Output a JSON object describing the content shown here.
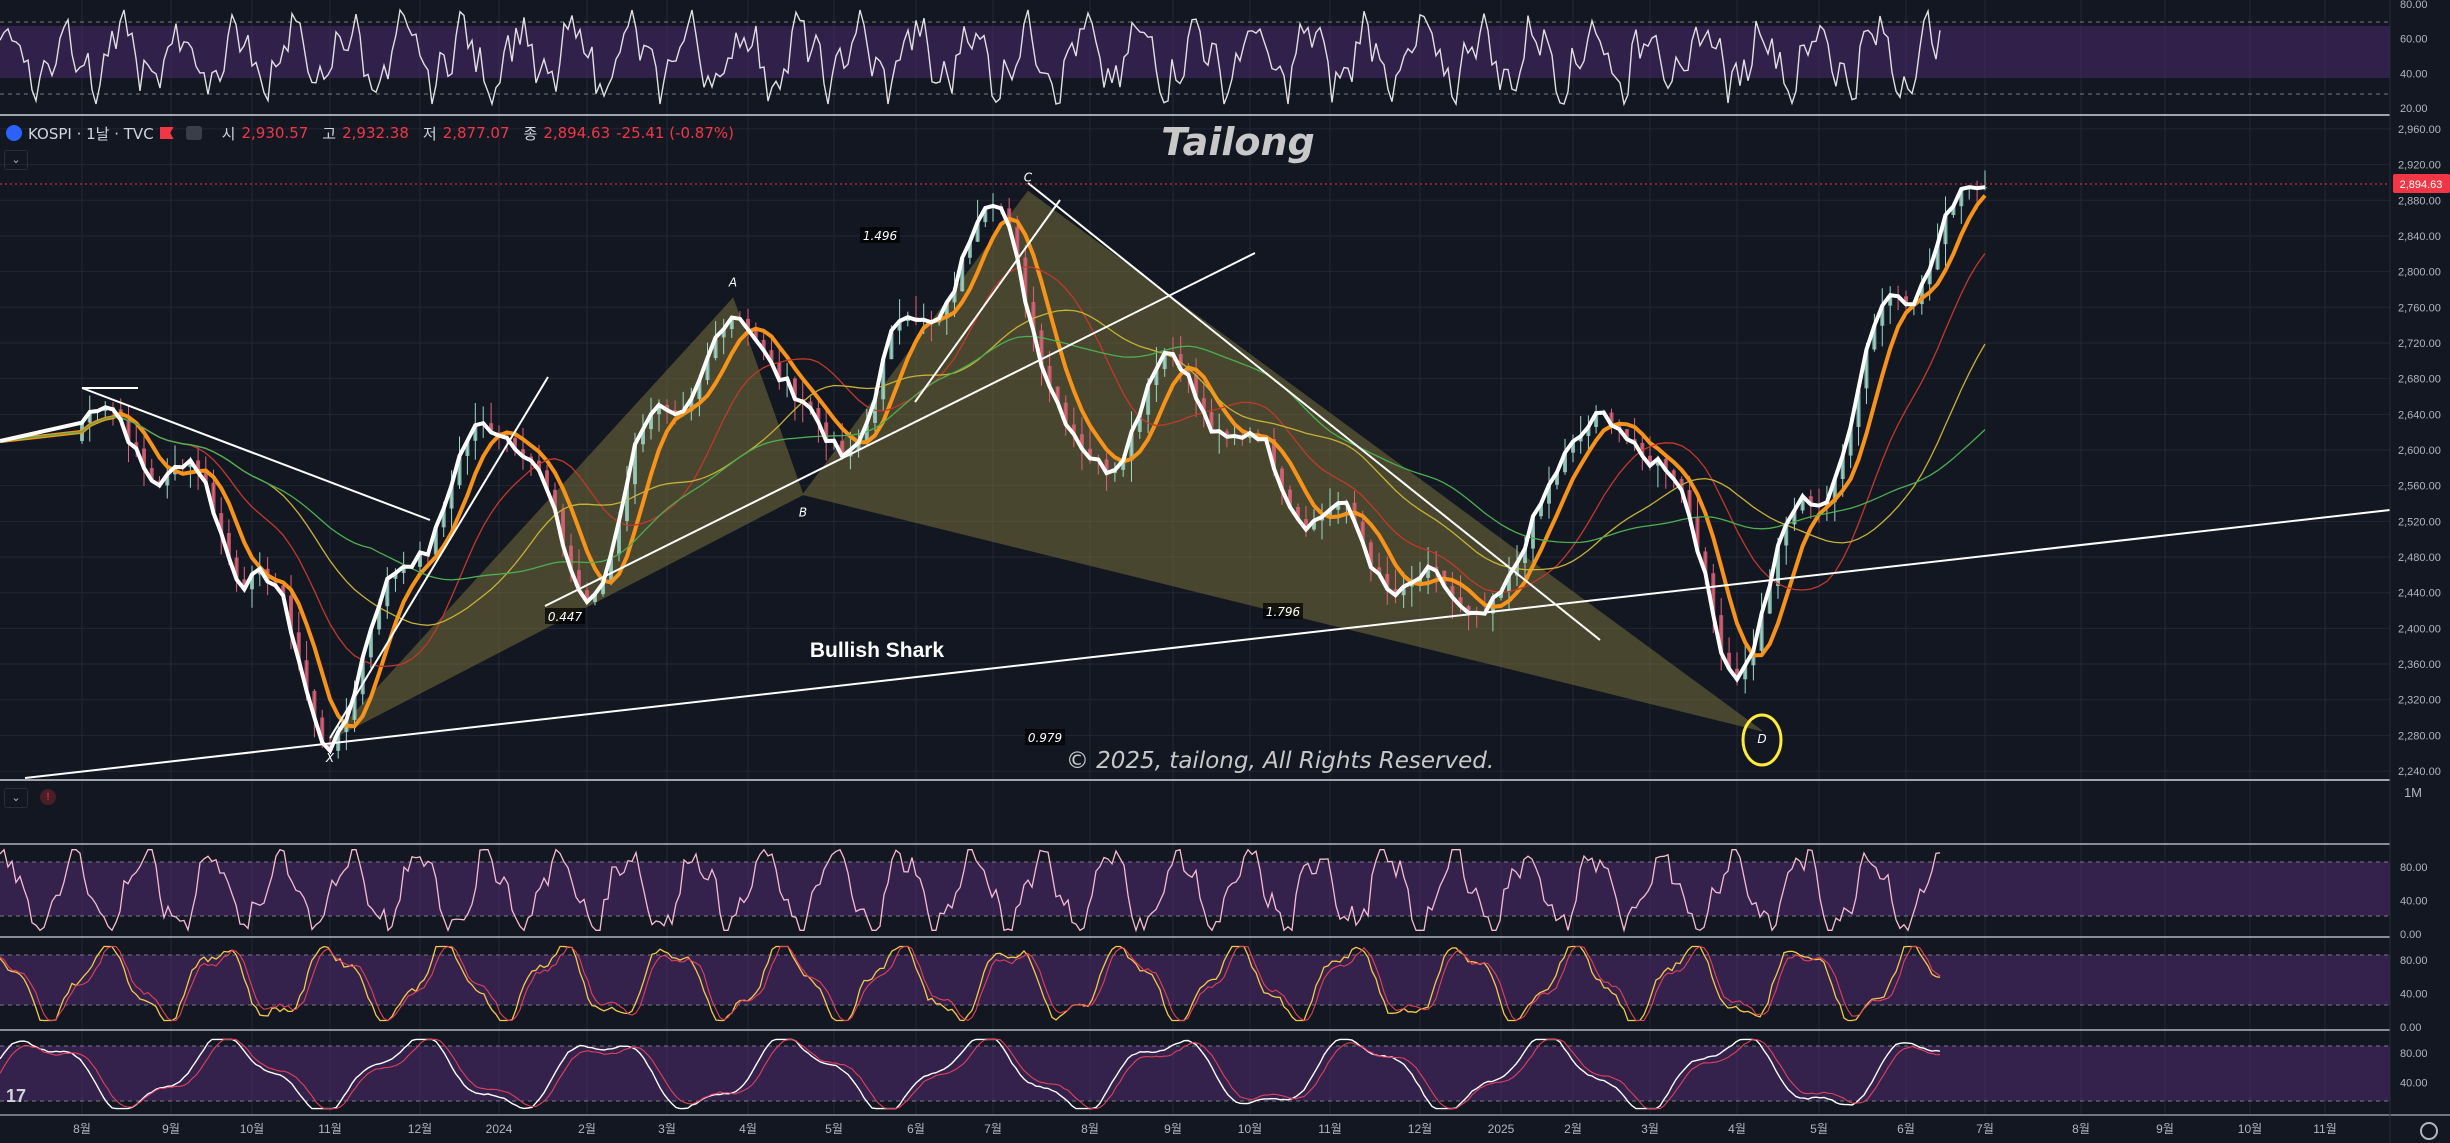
{
  "legend": {
    "symbol": "KOSPI · 1날 · TVC",
    "open_label": "시",
    "open": "2,930.57",
    "high_label": "고",
    "high": "2,932.38",
    "low_label": "저",
    "low": "2,877.07",
    "close_label": "종",
    "close": "2,894.63",
    "change": "-25.41 (-0.87%)"
  },
  "header_title": "Tailong",
  "copyright": "© 2025, tailong, All Rights Reserved.",
  "pattern_label": "Bullish Shark",
  "pane_interval": "1M",
  "tv_logo": "17",
  "colors": {
    "background": "#131722",
    "price": "#ffffff",
    "ema_fast": "#f7931a",
    "pattern_fill": "#8a7f3d",
    "last_price_badge": "#f23645",
    "osc_band": "#4b2a6b",
    "d_circle": "#ffeb3b"
  },
  "price_axis_ticks": [
    "2,960.00",
    "2,920.00",
    "2,880.00",
    "2,840.00",
    "2,800.00",
    "2,760.00",
    "2,720.00",
    "2,680.00",
    "2,640.00",
    "2,600.00",
    "2,560.00",
    "2,520.00",
    "2,480.00",
    "2,440.00",
    "2,400.00",
    "2,360.00",
    "2,320.00",
    "2,280.00",
    "2,240.00"
  ],
  "last_price_label": "2,894.63",
  "top_osc_ticks": [
    "80.00",
    "60.00",
    "40.00",
    "20.00"
  ],
  "osc_ticks": [
    "80.00",
    "40.00",
    "0.00"
  ],
  "stoch_ticks": [
    "80.00",
    "40.00"
  ],
  "time_axis": [
    "8월",
    "9월",
    "10월",
    "11월",
    "12월",
    "2024",
    "2월",
    "3월",
    "4월",
    "5월",
    "6월",
    "7월",
    "8월",
    "9월",
    "10월",
    "11월",
    "12월",
    "2025",
    "2월",
    "3월",
    "4월",
    "5월",
    "6월",
    "7월",
    "8월",
    "9월",
    "10월",
    "11월"
  ],
  "chart_data": {
    "type": "line",
    "title": "KOSPI · 1날 · TVC",
    "ylim": [
      2230,
      2970
    ],
    "x": [
      "8월",
      "9월",
      "10월",
      "11월",
      "12월",
      "2024",
      "2월",
      "3월",
      "4월",
      "5월",
      "6월",
      "7월",
      "8월",
      "9월",
      "10월",
      "11월",
      "12월",
      "2025",
      "2월",
      "3월",
      "4월",
      "5월",
      "6월",
      "7월"
    ],
    "series": [
      {
        "name": "",
        "values": [
          2640,
          2580,
          2470,
          2290,
          2500,
          2640,
          2450,
          2650,
          2740,
          2600,
          2740,
          2860,
          2580,
          2690,
          2600,
          2520,
          2440,
          2430,
          2620,
          2610,
          2370,
          2560,
          2790,
          2894.63
        ]
      }
    ],
    "harmonic_points": [
      {
        "label": "X",
        "x": "11월",
        "y": 2275
      },
      {
        "label": "A",
        "x": "4월",
        "y": 2770
      },
      {
        "label": "B",
        "x": "5월",
        "y": 2550
      },
      {
        "label": "C",
        "x": "7월",
        "y": 2890
      },
      {
        "label": "D",
        "x": "4월",
        "y": 2285
      }
    ],
    "ratio_labels": [
      "1.496",
      "0.447",
      "1.796",
      "0.979"
    ],
    "last_price": 2894.63
  }
}
